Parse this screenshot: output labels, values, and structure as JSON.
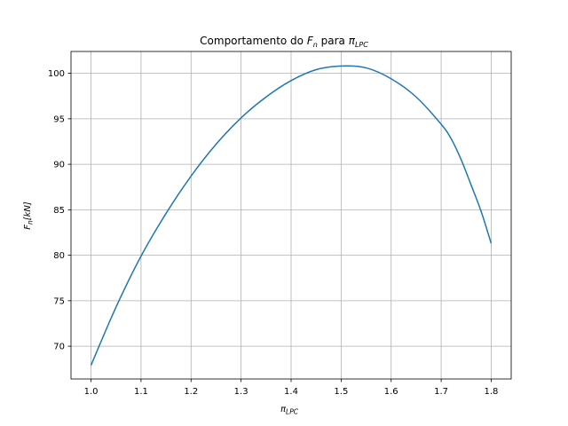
{
  "chart_data": {
    "type": "line",
    "title_main": "Comportamento do ",
    "title_var": "F",
    "title_var_sub": "n",
    "title_mid": " para ",
    "title_pi": "π",
    "title_pi_sub": "LPC",
    "xlabel_symbol": "π",
    "xlabel_sub": "LPC",
    "ylabel_symbol": "F",
    "ylabel_sub": "n",
    "ylabel_unit": "[kN]",
    "xlim": [
      0.96,
      1.84
    ],
    "ylim": [
      66.4,
      102.4
    ],
    "grid": true,
    "xticks": [
      "1.0",
      "1.1",
      "1.2",
      "1.3",
      "1.4",
      "1.5",
      "1.6",
      "1.7",
      "1.8"
    ],
    "xtick_values": [
      1.0,
      1.1,
      1.2,
      1.3,
      1.4,
      1.5,
      1.6,
      1.7,
      1.8
    ],
    "yticks": [
      "70",
      "75",
      "80",
      "85",
      "90",
      "95",
      "100"
    ],
    "ytick_values": [
      70,
      75,
      80,
      85,
      90,
      95,
      100
    ],
    "series": [
      {
        "color": "#1f77b4",
        "x": [
          1.0,
          1.05,
          1.1,
          1.15,
          1.2,
          1.25,
          1.3,
          1.35,
          1.4,
          1.45,
          1.5,
          1.55,
          1.6,
          1.65,
          1.7,
          1.72,
          1.74,
          1.76,
          1.78,
          1.8
        ],
        "y": [
          67.9,
          74.3,
          79.9,
          84.6,
          88.7,
          92.2,
          95.1,
          97.4,
          99.2,
          100.4,
          100.8,
          100.6,
          99.4,
          97.4,
          94.4,
          92.8,
          90.5,
          87.7,
          84.8,
          81.3
        ]
      }
    ]
  }
}
